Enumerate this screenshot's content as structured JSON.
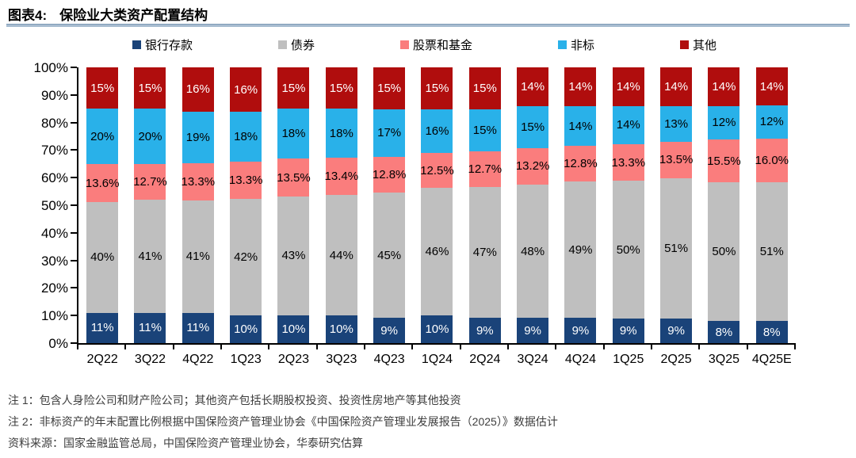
{
  "header": {
    "title_prefix": "图表4:",
    "title": "保险业大类资产配置结构"
  },
  "chart_data": {
    "type": "bar",
    "stacked": true,
    "value_suffix": "%",
    "legend_position": "top",
    "grid": false,
    "ylim": [
      0,
      100
    ],
    "y_ticks": [
      "0%",
      "10%",
      "20%",
      "30%",
      "40%",
      "50%",
      "60%",
      "70%",
      "80%",
      "90%",
      "100%"
    ],
    "categories": [
      "2Q22",
      "3Q22",
      "4Q22",
      "1Q23",
      "2Q23",
      "3Q23",
      "4Q23",
      "1Q24",
      "2Q24",
      "3Q24",
      "4Q24",
      "1Q25",
      "2Q25",
      "3Q25",
      "4Q25E"
    ],
    "series": [
      {
        "key": "bank-deposits",
        "name": "银行存款",
        "color": "#1a4379",
        "label_color": "#ffffff",
        "values": [
          11,
          11,
          11,
          10,
          10,
          10,
          9,
          10,
          9,
          9,
          9,
          9,
          9,
          8,
          8
        ],
        "labels": [
          "11%",
          "11%",
          "11%",
          "10%",
          "10%",
          "10%",
          "9%",
          "10%",
          "9%",
          "9%",
          "9%",
          "9%",
          "9%",
          "8%",
          "8%"
        ]
      },
      {
        "key": "bonds",
        "name": "债券",
        "color": "#bfbfbf",
        "label_color": "#000000",
        "values": [
          40,
          41,
          41,
          42,
          43,
          44,
          45,
          46,
          47,
          48,
          49,
          50,
          51,
          50,
          51
        ],
        "labels": [
          "40%",
          "41%",
          "41%",
          "42%",
          "43%",
          "44%",
          "45%",
          "46%",
          "47%",
          "48%",
          "49%",
          "50%",
          "51%",
          "50%",
          "51%"
        ]
      },
      {
        "key": "stocks-and-funds",
        "name": "股票和基金",
        "color": "#fa7d7d",
        "label_color": "#000000",
        "values": [
          13.6,
          12.7,
          13.3,
          13.3,
          13.5,
          13.4,
          12.8,
          12.5,
          12.7,
          13.2,
          12.8,
          13.3,
          13.5,
          15.5,
          16.0
        ],
        "labels": [
          "13.6%",
          "12.7%",
          "13.3%",
          "13.3%",
          "13.5%",
          "13.4%",
          "12.8%",
          "12.5%",
          "12.7%",
          "13.2%",
          "12.8%",
          "13.3%",
          "13.5%",
          "15.5%",
          "16.0%"
        ]
      },
      {
        "key": "non-standard",
        "name": "非标",
        "color": "#29b1e9",
        "label_color": "#000000",
        "values": [
          20,
          20,
          19,
          18,
          18,
          18,
          17,
          16,
          15,
          15,
          14,
          14,
          13,
          12,
          12
        ],
        "labels": [
          "20%",
          "20%",
          "19%",
          "18%",
          "18%",
          "18%",
          "17%",
          "16%",
          "15%",
          "15%",
          "14%",
          "14%",
          "13%",
          "12%",
          "12%"
        ]
      },
      {
        "key": "other",
        "name": "其他",
        "color": "#b00d0d",
        "label_color": "#ffffff",
        "values": [
          15,
          15,
          16,
          16,
          15,
          15,
          15,
          15,
          15,
          14,
          14,
          14,
          14,
          14,
          14
        ],
        "labels": [
          "15%",
          "15%",
          "16%",
          "16%",
          "15%",
          "15%",
          "15%",
          "15%",
          "15%",
          "14%",
          "14%",
          "14%",
          "14%",
          "14%",
          "14%"
        ]
      }
    ]
  },
  "footnotes": {
    "note1": "注 1：包含人身险公司和财产险公司；其他资产包括长期股权投资、投资性房地产等其他投资",
    "note2": "注 2：非标资产的年末配置比例根据中国保险资产管理业协会《中国保险资产管理业发展报告（2025）》数据估计",
    "source": "资料来源：国家金融监管总局，中国保险资产管理业协会，华泰研究估算"
  },
  "colors": {
    "divider": "#a7bcd0",
    "axis": "#000000",
    "footnote_text": "#3d3d3d"
  }
}
